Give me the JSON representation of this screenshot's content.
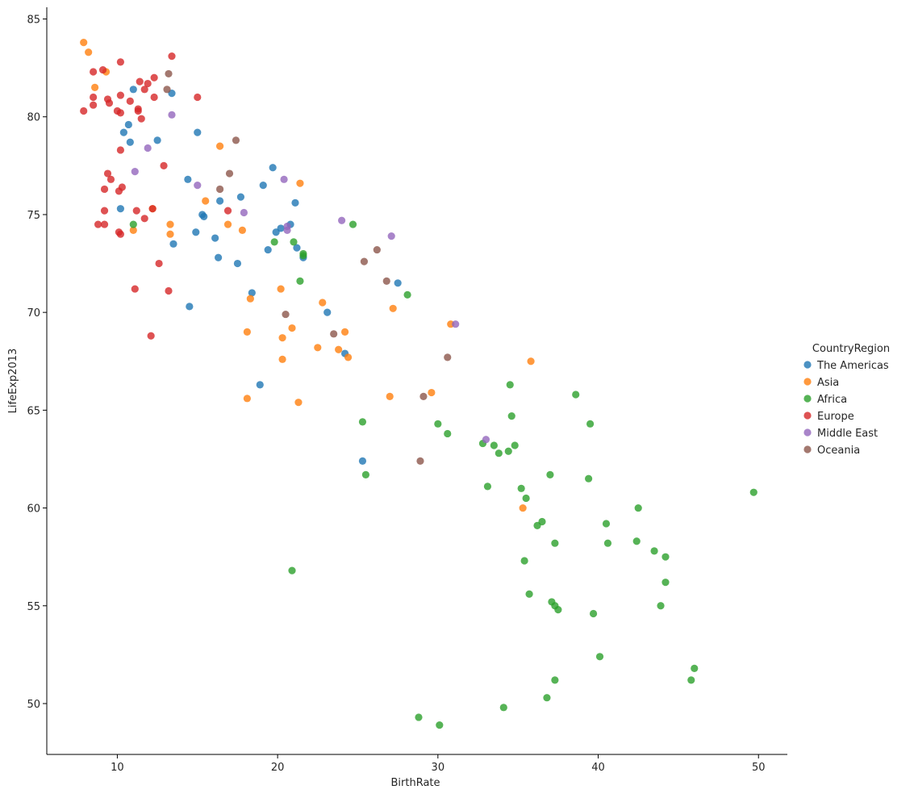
{
  "chart_data": {
    "type": "scatter",
    "xlabel": "BirthRate",
    "ylabel": "LifeExp2013",
    "xlim": [
      5.6,
      51.8
    ],
    "ylim": [
      47.4,
      85.6
    ],
    "xticks": [
      10,
      20,
      30,
      40,
      50
    ],
    "yticks": [
      50,
      55,
      60,
      65,
      70,
      75,
      80,
      85
    ],
    "grid": false,
    "legend": {
      "title": "CountryRegion",
      "placement": "right"
    },
    "series": [
      {
        "name": "The Americas",
        "color": "#1f77b4",
        "points": [
          [
            11.0,
            81.4
          ],
          [
            13.4,
            81.2
          ],
          [
            10.4,
            79.2
          ],
          [
            15.0,
            79.2
          ],
          [
            10.7,
            79.6
          ],
          [
            12.5,
            78.8
          ],
          [
            10.8,
            78.7
          ],
          [
            14.4,
            76.8
          ],
          [
            19.7,
            77.4
          ],
          [
            19.1,
            76.5
          ],
          [
            17.7,
            75.9
          ],
          [
            16.4,
            75.7
          ],
          [
            10.2,
            75.3
          ],
          [
            15.3,
            75.0
          ],
          [
            15.4,
            74.9
          ],
          [
            21.1,
            75.6
          ],
          [
            20.8,
            74.5
          ],
          [
            20.2,
            74.3
          ],
          [
            19.9,
            74.1
          ],
          [
            14.9,
            74.1
          ],
          [
            16.1,
            73.8
          ],
          [
            13.5,
            73.5
          ],
          [
            21.2,
            73.3
          ],
          [
            19.4,
            73.2
          ],
          [
            21.6,
            72.8
          ],
          [
            16.3,
            72.8
          ],
          [
            17.5,
            72.5
          ],
          [
            27.5,
            71.5
          ],
          [
            18.4,
            71.0
          ],
          [
            14.5,
            70.3
          ],
          [
            23.1,
            70.0
          ],
          [
            24.2,
            67.9
          ],
          [
            18.9,
            66.3
          ],
          [
            25.3,
            62.4
          ]
        ]
      },
      {
        "name": "Asia",
        "color": "#ff7f0e",
        "points": [
          [
            7.9,
            83.8
          ],
          [
            8.2,
            83.3
          ],
          [
            8.6,
            81.5
          ],
          [
            9.3,
            82.3
          ],
          [
            16.4,
            78.5
          ],
          [
            21.4,
            76.6
          ],
          [
            15.5,
            75.7
          ],
          [
            12.2,
            75.3
          ],
          [
            13.3,
            74.5
          ],
          [
            16.9,
            74.5
          ],
          [
            11.0,
            74.2
          ],
          [
            17.8,
            74.2
          ],
          [
            13.3,
            74.0
          ],
          [
            20.2,
            71.2
          ],
          [
            18.3,
            70.7
          ],
          [
            22.8,
            70.5
          ],
          [
            27.2,
            70.2
          ],
          [
            30.8,
            69.4
          ],
          [
            20.9,
            69.2
          ],
          [
            18.1,
            69.0
          ],
          [
            24.2,
            69.0
          ],
          [
            20.3,
            68.7
          ],
          [
            22.5,
            68.2
          ],
          [
            23.8,
            68.1
          ],
          [
            24.4,
            67.7
          ],
          [
            20.3,
            67.6
          ],
          [
            35.8,
            67.5
          ],
          [
            29.6,
            65.9
          ],
          [
            27.0,
            65.7
          ],
          [
            18.1,
            65.6
          ],
          [
            21.3,
            65.4
          ],
          [
            35.3,
            60.0
          ]
        ]
      },
      {
        "name": "Africa",
        "color": "#2ca02c",
        "points": [
          [
            24.7,
            74.5
          ],
          [
            19.8,
            73.6
          ],
          [
            21.0,
            73.6
          ],
          [
            21.6,
            72.9
          ],
          [
            21.6,
            73.0
          ],
          [
            11.0,
            74.5
          ],
          [
            21.4,
            71.6
          ],
          [
            28.1,
            70.9
          ],
          [
            34.5,
            66.3
          ],
          [
            38.6,
            65.8
          ],
          [
            34.6,
            64.7
          ],
          [
            25.3,
            64.4
          ],
          [
            30.0,
            64.3
          ],
          [
            39.5,
            64.3
          ],
          [
            30.6,
            63.8
          ],
          [
            32.8,
            63.3
          ],
          [
            33.5,
            63.2
          ],
          [
            34.8,
            63.2
          ],
          [
            34.4,
            62.9
          ],
          [
            33.8,
            62.8
          ],
          [
            25.5,
            61.7
          ],
          [
            37.0,
            61.7
          ],
          [
            39.4,
            61.5
          ],
          [
            33.1,
            61.1
          ],
          [
            35.2,
            61.0
          ],
          [
            49.7,
            60.8
          ],
          [
            35.5,
            60.5
          ],
          [
            42.5,
            60.0
          ],
          [
            36.5,
            59.3
          ],
          [
            36.2,
            59.1
          ],
          [
            40.5,
            59.2
          ],
          [
            37.3,
            58.2
          ],
          [
            40.6,
            58.2
          ],
          [
            42.4,
            58.3
          ],
          [
            43.5,
            57.8
          ],
          [
            44.2,
            57.5
          ],
          [
            35.4,
            57.3
          ],
          [
            20.9,
            56.8
          ],
          [
            44.2,
            56.2
          ],
          [
            35.7,
            55.6
          ],
          [
            37.1,
            55.2
          ],
          [
            37.3,
            55.0
          ],
          [
            37.5,
            54.8
          ],
          [
            43.9,
            55.0
          ],
          [
            39.7,
            54.6
          ],
          [
            40.1,
            52.4
          ],
          [
            46.0,
            51.8
          ],
          [
            45.8,
            51.2
          ],
          [
            37.3,
            51.2
          ],
          [
            36.8,
            50.3
          ],
          [
            34.1,
            49.8
          ],
          [
            28.8,
            49.3
          ],
          [
            30.1,
            48.9
          ]
        ]
      },
      {
        "name": "Europe",
        "color": "#d62728",
        "points": [
          [
            13.4,
            83.1
          ],
          [
            10.2,
            82.8
          ],
          [
            9.1,
            82.4
          ],
          [
            8.5,
            82.3
          ],
          [
            12.3,
            82.0
          ],
          [
            11.4,
            81.8
          ],
          [
            11.9,
            81.7
          ],
          [
            11.7,
            81.4
          ],
          [
            8.5,
            81.0
          ],
          [
            10.2,
            81.1
          ],
          [
            12.3,
            81.0
          ],
          [
            15.0,
            81.0
          ],
          [
            9.4,
            80.9
          ],
          [
            10.8,
            80.8
          ],
          [
            9.5,
            80.7
          ],
          [
            8.5,
            80.6
          ],
          [
            7.9,
            80.3
          ],
          [
            10.0,
            80.3
          ],
          [
            10.2,
            80.2
          ],
          [
            11.3,
            80.4
          ],
          [
            11.3,
            80.3
          ],
          [
            11.5,
            79.9
          ],
          [
            10.2,
            78.3
          ],
          [
            12.9,
            77.5
          ],
          [
            9.4,
            77.1
          ],
          [
            9.6,
            76.8
          ],
          [
            10.3,
            76.4
          ],
          [
            9.2,
            76.3
          ],
          [
            10.1,
            76.2
          ],
          [
            12.2,
            75.3
          ],
          [
            9.2,
            75.2
          ],
          [
            11.2,
            75.2
          ],
          [
            16.9,
            75.2
          ],
          [
            11.7,
            74.8
          ],
          [
            8.8,
            74.5
          ],
          [
            9.2,
            74.5
          ],
          [
            10.1,
            74.1
          ],
          [
            10.2,
            74.0
          ],
          [
            12.6,
            72.5
          ],
          [
            11.1,
            71.2
          ],
          [
            13.2,
            71.1
          ],
          [
            12.1,
            68.8
          ]
        ]
      },
      {
        "name": "Middle East",
        "color": "#9467bd",
        "points": [
          [
            13.4,
            80.1
          ],
          [
            11.9,
            78.4
          ],
          [
            11.1,
            77.2
          ],
          [
            20.4,
            76.8
          ],
          [
            15.0,
            76.5
          ],
          [
            17.9,
            75.1
          ],
          [
            24.0,
            74.7
          ],
          [
            20.6,
            74.4
          ],
          [
            20.6,
            74.2
          ],
          [
            27.1,
            73.9
          ],
          [
            31.1,
            69.4
          ],
          [
            33.0,
            63.5
          ]
        ]
      },
      {
        "name": "Oceania",
        "color": "#8c564b",
        "points": [
          [
            13.2,
            82.2
          ],
          [
            13.1,
            81.4
          ],
          [
            17.4,
            78.8
          ],
          [
            17.0,
            77.1
          ],
          [
            16.4,
            76.3
          ],
          [
            26.2,
            73.2
          ],
          [
            25.4,
            72.6
          ],
          [
            26.8,
            71.6
          ],
          [
            20.5,
            69.9
          ],
          [
            23.5,
            68.9
          ],
          [
            30.6,
            67.7
          ],
          [
            29.1,
            65.7
          ],
          [
            28.9,
            62.4
          ]
        ]
      }
    ]
  }
}
